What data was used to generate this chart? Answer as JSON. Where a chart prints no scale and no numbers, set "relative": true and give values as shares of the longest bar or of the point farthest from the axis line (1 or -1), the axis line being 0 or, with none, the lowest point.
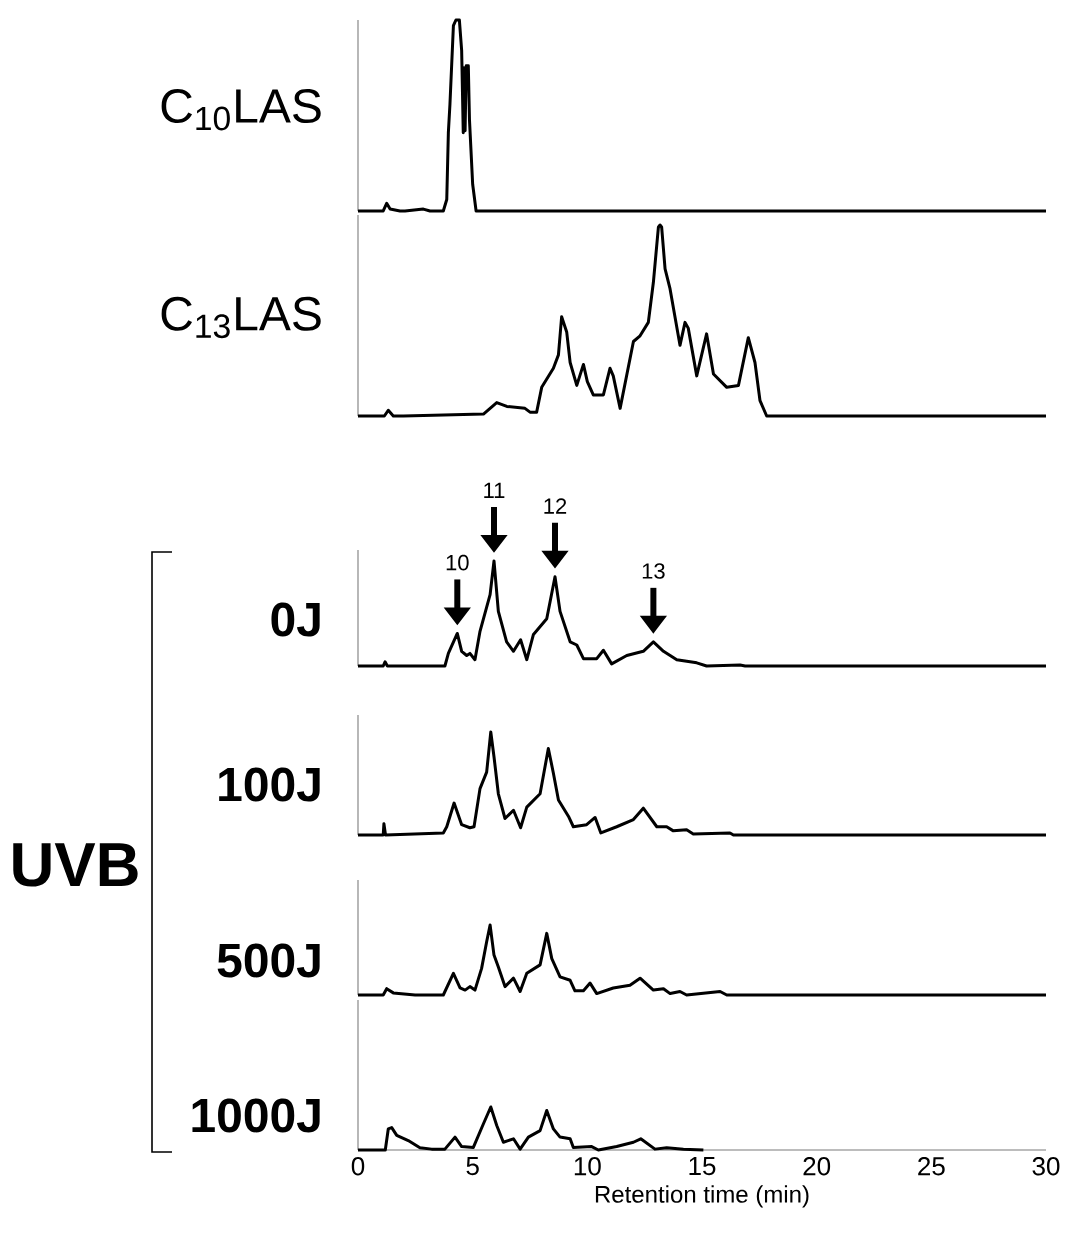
{
  "chart_data": [
    {
      "type": "line",
      "ylabel": "C$_{10}$LAS",
      "relative": true,
      "color": "#000000",
      "xlim": [
        0,
        30
      ],
      "tick_labels": false,
      "x": [
        0,
        1.1,
        1.25,
        1.4,
        1.83,
        2.05,
        2.85,
        3.14,
        3.72,
        3.87,
        3.94,
        4.01,
        4.16,
        4.27,
        4.42,
        4.52,
        4.59,
        4.63,
        4.67,
        4.72,
        4.81,
        4.86,
        5.0,
        5.15,
        30
      ],
      "values": [
        0,
        0,
        0.04,
        0.01,
        0,
        0,
        0.01,
        0,
        0,
        0.06,
        0.41,
        0.56,
        0.97,
        1.0,
        1.0,
        0.84,
        0.41,
        0.75,
        0.42,
        0.76,
        0.76,
        0.48,
        0.14,
        0,
        0
      ]
    },
    {
      "type": "line",
      "ylabel": "C$_{13}$LAS",
      "relative": true,
      "color": "#000000",
      "xlim": [
        0,
        30
      ],
      "tick_labels": false,
      "x": [
        0,
        1.15,
        1.32,
        1.54,
        1.98,
        5.47,
        6.05,
        6.49,
        7.28,
        7.5,
        7.79,
        8.01,
        8.52,
        8.74,
        8.88,
        9.1,
        9.25,
        9.54,
        9.83,
        10.0,
        10.26,
        10.7,
        10.99,
        11.13,
        11.43,
        12.01,
        12.3,
        12.66,
        12.88,
        13.1,
        13.17,
        13.24,
        13.39,
        13.6,
        14.04,
        14.26,
        14.4,
        14.77,
        15.2,
        15.5,
        16.08,
        16.59,
        17.02,
        17.31,
        17.53,
        17.82,
        30
      ],
      "values": [
        0,
        0,
        0.03,
        0,
        0,
        0.01,
        0.07,
        0.05,
        0.04,
        0.02,
        0.02,
        0.15,
        0.25,
        0.32,
        0.52,
        0.44,
        0.28,
        0.16,
        0.27,
        0.18,
        0.11,
        0.11,
        0.25,
        0.21,
        0.04,
        0.39,
        0.42,
        0.49,
        0.7,
        0.99,
        1.0,
        0.99,
        0.77,
        0.67,
        0.37,
        0.49,
        0.46,
        0.21,
        0.43,
        0.22,
        0.15,
        0.16,
        0.41,
        0.28,
        0.08,
        0,
        0
      ]
    },
    {
      "type": "line",
      "ylabel": "0J",
      "relative": true,
      "color": "#000000",
      "xlim": [
        0,
        30
      ],
      "tick_labels": false,
      "x": [
        0,
        1.1,
        1.18,
        1.28,
        3.79,
        3.94,
        4.33,
        4.52,
        4.74,
        4.88,
        5.1,
        5.32,
        5.76,
        5.93,
        6.12,
        6.48,
        6.78,
        7.09,
        7.36,
        7.65,
        8.23,
        8.59,
        8.81,
        9.25,
        9.54,
        9.83,
        10.41,
        10.7,
        11.06,
        11.72,
        12.44,
        12.88,
        13.32,
        13.9,
        14.77,
        15.2,
        16.66,
        16.88,
        30
      ],
      "values": [
        0,
        0,
        0.04,
        0,
        0,
        0.12,
        0.31,
        0.14,
        0.1,
        0.12,
        0.06,
        0.33,
        0.68,
        1.0,
        0.52,
        0.23,
        0.14,
        0.25,
        0.06,
        0.3,
        0.45,
        0.85,
        0.52,
        0.23,
        0.2,
        0.07,
        0.07,
        0.15,
        0.02,
        0.1,
        0.14,
        0.23,
        0.14,
        0.06,
        0.03,
        0,
        0.01,
        0,
        0
      ],
      "annotations": [
        {
          "text": "10",
          "x": 4.33,
          "y": 0.31
        },
        {
          "text": "11",
          "x": 5.93,
          "y": 1.0
        },
        {
          "text": "12",
          "x": 8.59,
          "y": 0.85
        },
        {
          "text": "13",
          "x": 12.88,
          "y": 0.23
        },
        "UVB"
      ]
    },
    {
      "type": "line",
      "ylabel": "100J",
      "relative": true,
      "color": "#000000",
      "xlim": [
        0,
        30
      ],
      "tick_labels": false,
      "x": [
        0,
        1.1,
        1.13,
        1.2,
        3.72,
        3.87,
        4.19,
        4.52,
        4.88,
        5.06,
        5.32,
        5.61,
        5.79,
        5.93,
        6.12,
        6.41,
        6.78,
        7.09,
        7.36,
        7.94,
        8.3,
        8.52,
        8.74,
        9.18,
        9.39,
        9.97,
        10.34,
        10.59,
        11.28,
        12.01,
        12.44,
        13.03,
        13.46,
        13.75,
        14.33,
        14.62,
        16.22,
        16.37,
        30
      ],
      "values": [
        0,
        0,
        0.11,
        0,
        0.02,
        0.08,
        0.31,
        0.1,
        0.07,
        0.08,
        0.45,
        0.61,
        1.0,
        0.76,
        0.4,
        0.16,
        0.24,
        0.07,
        0.27,
        0.4,
        0.84,
        0.6,
        0.34,
        0.18,
        0.08,
        0.1,
        0.17,
        0.02,
        0.08,
        0.15,
        0.26,
        0.08,
        0.08,
        0.04,
        0.05,
        0.01,
        0.02,
        0,
        0
      ]
    },
    {
      "type": "line",
      "ylabel": "500J",
      "relative": true,
      "color": "#000000",
      "xlim": [
        0,
        30
      ],
      "tick_labels": false,
      "x": [
        0,
        1.1,
        1.25,
        1.54,
        2.49,
        3.72,
        4.16,
        4.45,
        4.67,
        4.88,
        5.1,
        5.39,
        5.61,
        5.76,
        5.93,
        6.12,
        6.41,
        6.78,
        7.07,
        7.36,
        7.94,
        8.23,
        8.45,
        8.81,
        9.25,
        9.46,
        9.83,
        10.12,
        10.41,
        11.13,
        11.86,
        12.3,
        12.88,
        13.32,
        13.61,
        14.04,
        14.33,
        15.79,
        16.08,
        30
      ],
      "values": [
        0,
        0,
        0.09,
        0.03,
        0,
        0,
        0.31,
        0.1,
        0.07,
        0.12,
        0.07,
        0.38,
        0.76,
        1.0,
        0.57,
        0.4,
        0.12,
        0.24,
        0.05,
        0.31,
        0.43,
        0.88,
        0.52,
        0.26,
        0.21,
        0.06,
        0.06,
        0.17,
        0.02,
        0.1,
        0.14,
        0.24,
        0.07,
        0.09,
        0.02,
        0.05,
        0,
        0.05,
        0,
        0
      ]
    },
    {
      "type": "line",
      "ylabel": "1000J",
      "xlabel": "Retention time (min)",
      "relative": true,
      "color": "#000000",
      "xlim": [
        0,
        30
      ],
      "xticks": [
        0,
        5,
        10,
        15,
        20,
        25,
        30
      ],
      "tick_labels": "x",
      "x": [
        0,
        1.19,
        1.32,
        1.47,
        1.69,
        2.19,
        2.7,
        3.21,
        3.79,
        4.23,
        4.52,
        5.03,
        5.47,
        5.79,
        6.05,
        6.34,
        6.78,
        7.07,
        7.43,
        7.94,
        8.23,
        8.52,
        8.81,
        9.25,
        9.39,
        10.19,
        10.48,
        11.28,
        12.01,
        12.33,
        12.95,
        13.46,
        14.19,
        15.06
      ],
      "values": [
        0,
        0,
        0.49,
        0.52,
        0.34,
        0.22,
        0.05,
        0.02,
        0.02,
        0.3,
        0.08,
        0.06,
        0.61,
        1.0,
        0.57,
        0.18,
        0.26,
        0.02,
        0.3,
        0.45,
        0.92,
        0.49,
        0.3,
        0.26,
        0.06,
        0.08,
        0,
        0.08,
        0.18,
        0.26,
        0.02,
        0.05,
        0.02,
        0
      ]
    }
  ]
}
